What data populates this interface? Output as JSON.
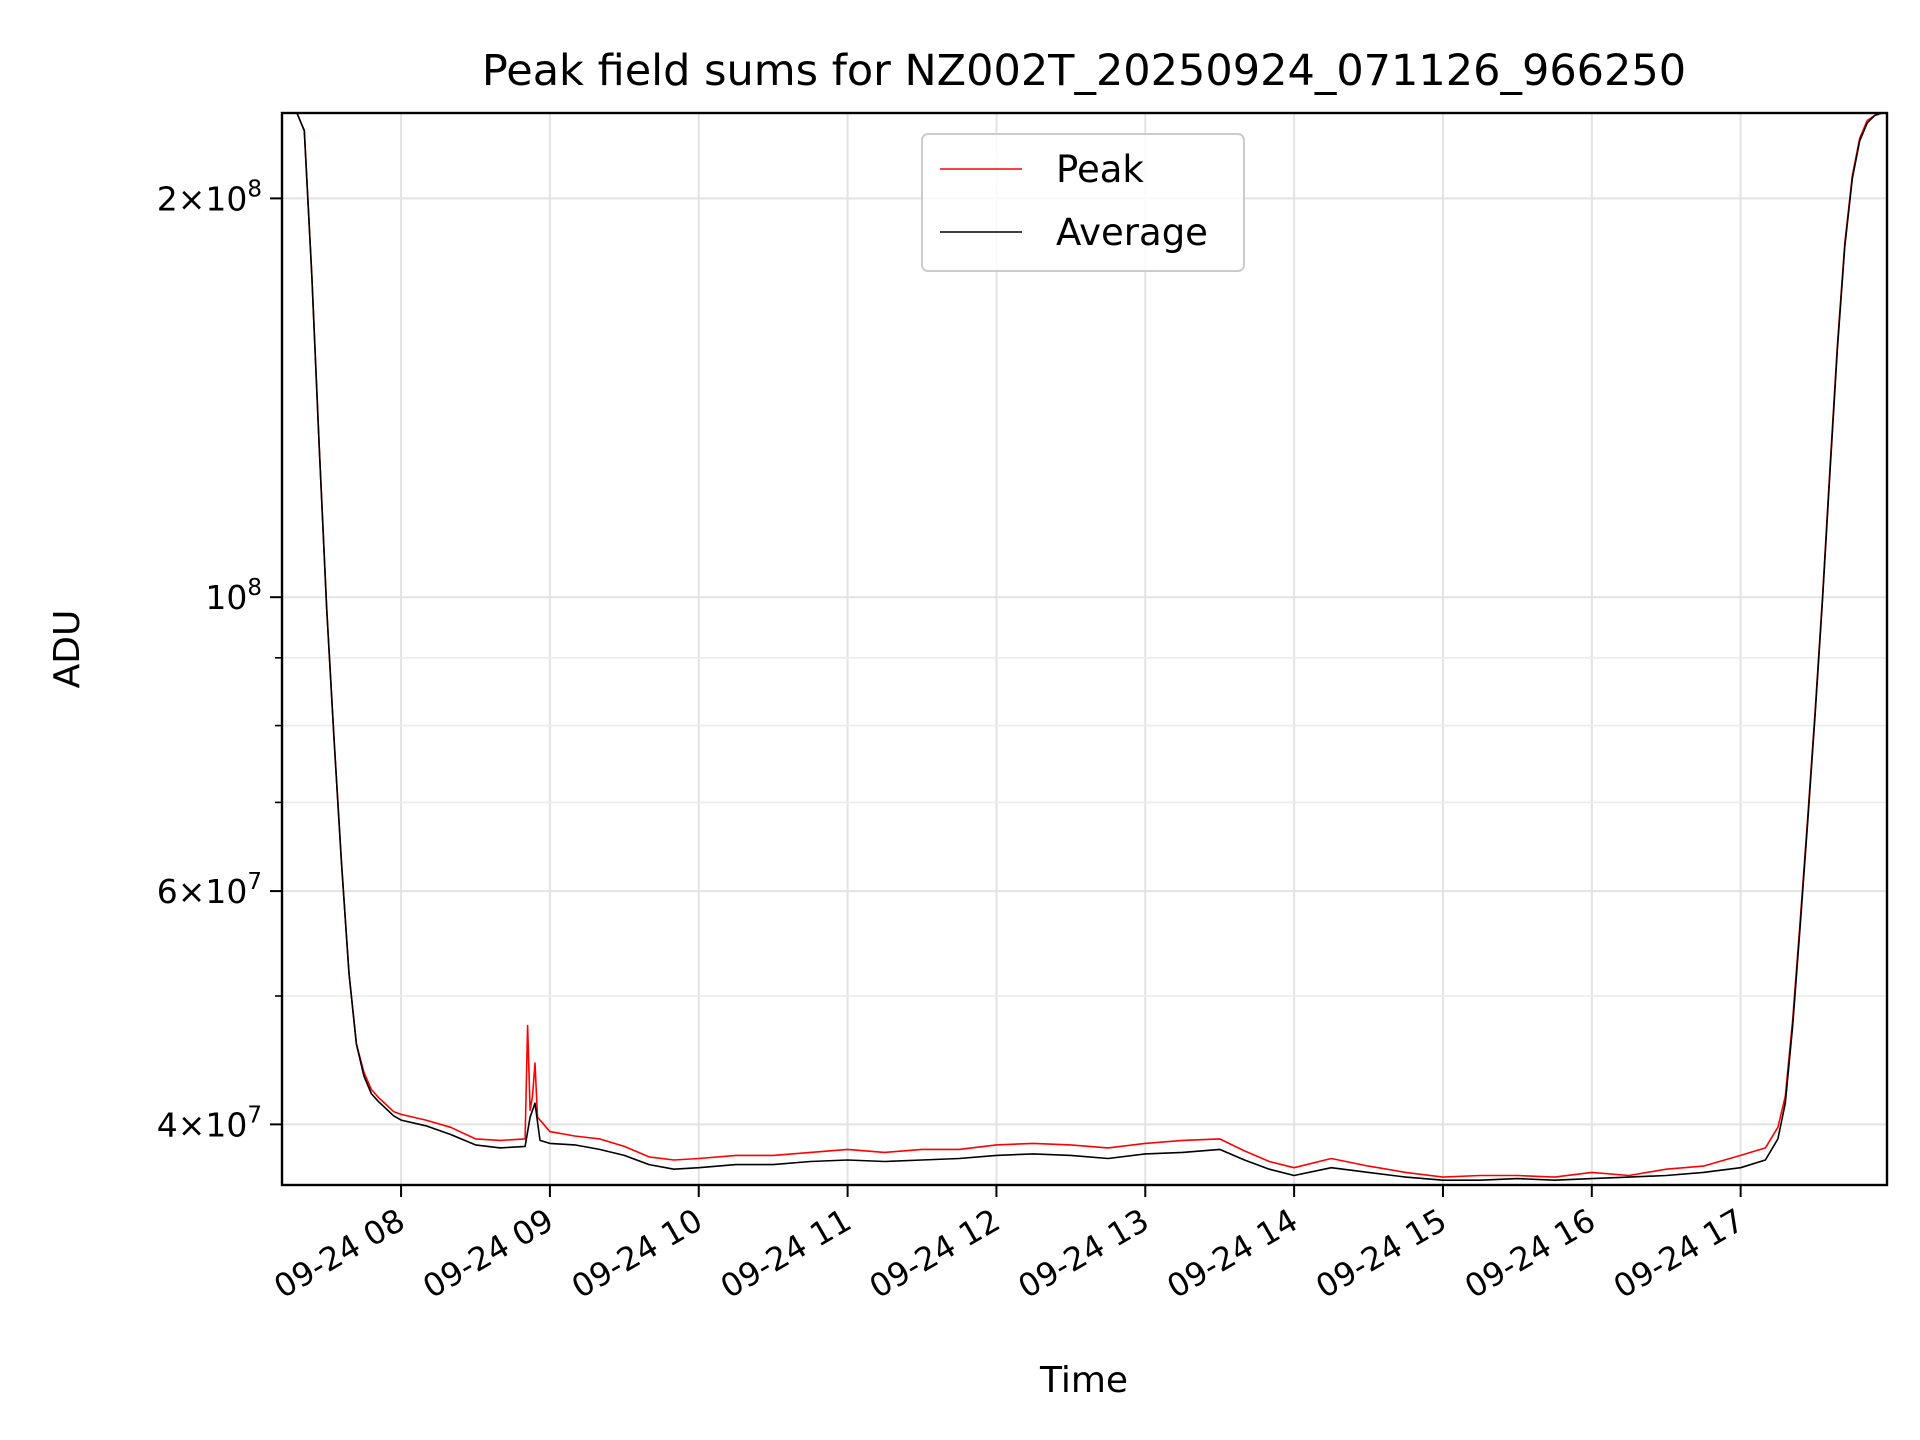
{
  "chart_data": {
    "type": "line",
    "title": "Peak field sums for NZ002T_20250924_071126_966250",
    "xlabel": "Time",
    "ylabel": "ADU",
    "y_scale": "log",
    "ylim": [
      36000000,
      232000000
    ],
    "xlim": [
      "09-24 07:12",
      "09-24 17:59"
    ],
    "grid": true,
    "legend_position": "upper center",
    "x_ticks": [
      "09-24 08",
      "09-24 09",
      "09-24 10",
      "09-24 11",
      "09-24 12",
      "09-24 13",
      "09-24 14",
      "09-24 15",
      "09-24 16",
      "09-24 17"
    ],
    "x_tick_times": [
      "09-24 08:00",
      "09-24 09:00",
      "09-24 10:00",
      "09-24 11:00",
      "09-24 12:00",
      "09-24 13:00",
      "09-24 14:00",
      "09-24 15:00",
      "09-24 16:00",
      "09-24 17:00"
    ],
    "y_ticks": [
      {
        "label": "2×10⁸",
        "value": 200000000
      },
      {
        "label": "10⁸",
        "value": 100000000
      },
      {
        "label": "6×10⁷",
        "value": 60000000
      },
      {
        "label": "4×10⁷",
        "value": 40000000
      }
    ],
    "y_minor_ticks": [
      50000000,
      70000000,
      80000000,
      90000000
    ],
    "series": [
      {
        "name": "Peak",
        "color": "#ff0000",
        "x": [
          "07:12",
          "07:18",
          "07:21",
          "07:24",
          "07:27",
          "07:30",
          "07:33",
          "07:36",
          "07:39",
          "07:42",
          "07:45",
          "07:48",
          "07:51",
          "07:54",
          "07:57",
          "08:00",
          "08:10",
          "08:20",
          "08:30",
          "08:40",
          "08:50",
          "08:51",
          "08:52",
          "08:53",
          "08:54",
          "08:55",
          "09:00",
          "09:10",
          "09:20",
          "09:30",
          "09:40",
          "09:50",
          "10:00",
          "10:15",
          "10:30",
          "10:45",
          "11:00",
          "11:15",
          "11:30",
          "11:45",
          "12:00",
          "12:15",
          "12:30",
          "12:45",
          "13:00",
          "13:15",
          "13:30",
          "13:40",
          "13:50",
          "14:00",
          "14:15",
          "14:30",
          "14:45",
          "15:00",
          "15:15",
          "15:30",
          "15:45",
          "16:00",
          "16:15",
          "16:30",
          "16:45",
          "17:00",
          "17:10",
          "17:15",
          "17:18",
          "17:21",
          "17:24",
          "17:27",
          "17:30",
          "17:33",
          "17:36",
          "17:39",
          "17:42",
          "17:45",
          "17:48",
          "17:51",
          "17:54",
          "17:57",
          "17:59"
        ],
        "y": [
          232000000,
          232000000,
          225000000,
          175000000,
          130000000,
          98000000,
          78000000,
          63000000,
          52000000,
          46000000,
          43800000,
          42500000,
          41900000,
          41400000,
          40900000,
          40700000,
          40300000,
          39800000,
          39000000,
          38900000,
          39000000,
          47500000,
          41000000,
          42000000,
          44500000,
          40500000,
          39500000,
          39200000,
          39000000,
          38500000,
          37800000,
          37600000,
          37700000,
          37900000,
          37900000,
          38100000,
          38300000,
          38100000,
          38300000,
          38300000,
          38600000,
          38700000,
          38600000,
          38400000,
          38700000,
          38900000,
          39000000,
          38200000,
          37500000,
          37100000,
          37700000,
          37200000,
          36800000,
          36500000,
          36600000,
          36600000,
          36500000,
          36800000,
          36600000,
          37000000,
          37200000,
          37900000,
          38400000,
          39800000,
          42000000,
          48000000,
          57000000,
          68000000,
          82000000,
          100000000,
          125000000,
          155000000,
          185000000,
          208000000,
          222000000,
          229000000,
          231000000,
          232000000,
          232000000
        ]
      },
      {
        "name": "Average",
        "color": "#000000",
        "x": [
          "07:12",
          "07:18",
          "07:21",
          "07:24",
          "07:27",
          "07:30",
          "07:33",
          "07:36",
          "07:39",
          "07:42",
          "07:45",
          "07:48",
          "07:51",
          "07:54",
          "07:57",
          "08:00",
          "08:10",
          "08:20",
          "08:30",
          "08:40",
          "08:50",
          "08:52",
          "08:54",
          "08:56",
          "09:00",
          "09:10",
          "09:20",
          "09:30",
          "09:40",
          "09:50",
          "10:00",
          "10:15",
          "10:30",
          "10:45",
          "11:00",
          "11:15",
          "11:30",
          "11:45",
          "12:00",
          "12:15",
          "12:30",
          "12:45",
          "13:00",
          "13:15",
          "13:30",
          "13:40",
          "13:50",
          "14:00",
          "14:15",
          "14:30",
          "14:45",
          "15:00",
          "15:15",
          "15:30",
          "15:45",
          "16:00",
          "16:15",
          "16:30",
          "16:45",
          "17:00",
          "17:10",
          "17:15",
          "17:18",
          "17:21",
          "17:24",
          "17:27",
          "17:30",
          "17:33",
          "17:36",
          "17:39",
          "17:42",
          "17:45",
          "17:48",
          "17:51",
          "17:54",
          "17:57",
          "17:59"
        ],
        "y": [
          232000000,
          232000000,
          225000000,
          175000000,
          130000000,
          98000000,
          78000000,
          63000000,
          52000000,
          46000000,
          43500000,
          42200000,
          41600000,
          41100000,
          40600000,
          40300000,
          39900000,
          39300000,
          38600000,
          38400000,
          38500000,
          40500000,
          41500000,
          38900000,
          38700000,
          38600000,
          38300000,
          37900000,
          37300000,
          37000000,
          37100000,
          37300000,
          37300000,
          37500000,
          37600000,
          37500000,
          37600000,
          37700000,
          37900000,
          38000000,
          37900000,
          37700000,
          38000000,
          38100000,
          38300000,
          37600000,
          37000000,
          36600000,
          37100000,
          36800000,
          36500000,
          36300000,
          36300000,
          36400000,
          36300000,
          36400000,
          36500000,
          36600000,
          36800000,
          37100000,
          37600000,
          39000000,
          41500000,
          47500000,
          56500000,
          67500000,
          81500000,
          99500000,
          124000000,
          154000000,
          184000000,
          207000000,
          221000000,
          228000000,
          231000000,
          232000000,
          232000000
        ]
      }
    ]
  }
}
